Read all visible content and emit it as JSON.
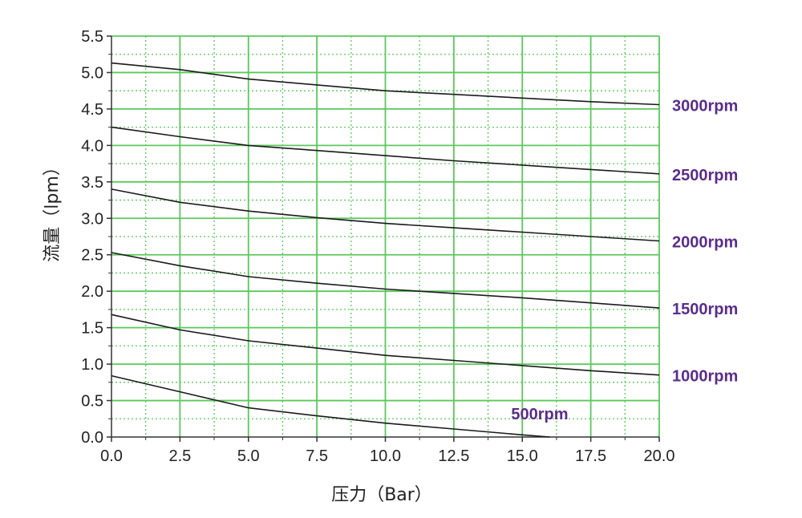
{
  "chart_data": {
    "type": "line",
    "xlabel": "压力（Bar）",
    "ylabel": "流量（lpm）",
    "xlim": [
      0,
      20
    ],
    "ylim": [
      0,
      5.5
    ],
    "x_ticks": [
      "0.0",
      "2.5",
      "5.0",
      "7.5",
      "10.0",
      "12.5",
      "15.0",
      "17.5",
      "20.0"
    ],
    "y_ticks": [
      "0.0",
      "0.5",
      "1.0",
      "1.5",
      "2.0",
      "2.5",
      "3.0",
      "3.5",
      "4.0",
      "4.5",
      "5.0",
      "5.5"
    ],
    "grid": true,
    "legend": "series labels at right end of lines",
    "colors": {
      "grid_major": "#5bc85b",
      "grid_minor": "#5bc85b",
      "line": "#1a1a1a",
      "label": "#5b2d8a",
      "axis": "#333333"
    },
    "series": [
      {
        "name": "3000rpm",
        "x": [
          0,
          2.5,
          5,
          7.5,
          10,
          12.5,
          15,
          17.5,
          20
        ],
        "y": [
          5.13,
          5.04,
          4.91,
          4.83,
          4.75,
          4.7,
          4.65,
          4.6,
          4.56
        ]
      },
      {
        "name": "2500rpm",
        "x": [
          0,
          2.5,
          5,
          7.5,
          10,
          12.5,
          15,
          17.5,
          20
        ],
        "y": [
          4.25,
          4.12,
          4.0,
          3.93,
          3.86,
          3.79,
          3.73,
          3.67,
          3.61
        ]
      },
      {
        "name": "2000rpm",
        "x": [
          0,
          2.5,
          5,
          7.5,
          10,
          12.5,
          15,
          17.5,
          20
        ],
        "y": [
          3.4,
          3.22,
          3.1,
          3.01,
          2.93,
          2.87,
          2.81,
          2.75,
          2.69
        ]
      },
      {
        "name": "1500rpm",
        "x": [
          0,
          2.5,
          5,
          7.5,
          10,
          12.5,
          15,
          17.5,
          20
        ],
        "y": [
          2.53,
          2.35,
          2.2,
          2.11,
          2.03,
          1.97,
          1.91,
          1.84,
          1.77
        ]
      },
      {
        "name": "1000rpm",
        "x": [
          0,
          2.5,
          5,
          7.5,
          10,
          12.5,
          15,
          17.5,
          20
        ],
        "y": [
          1.68,
          1.47,
          1.32,
          1.22,
          1.12,
          1.05,
          0.98,
          0.91,
          0.85
        ]
      },
      {
        "name": "500rpm",
        "x": [
          0,
          2.5,
          5,
          7.5,
          10,
          12.5,
          15,
          16
        ],
        "y": [
          0.84,
          0.62,
          0.4,
          0.29,
          0.19,
          0.11,
          0.03,
          0.0
        ]
      }
    ]
  }
}
